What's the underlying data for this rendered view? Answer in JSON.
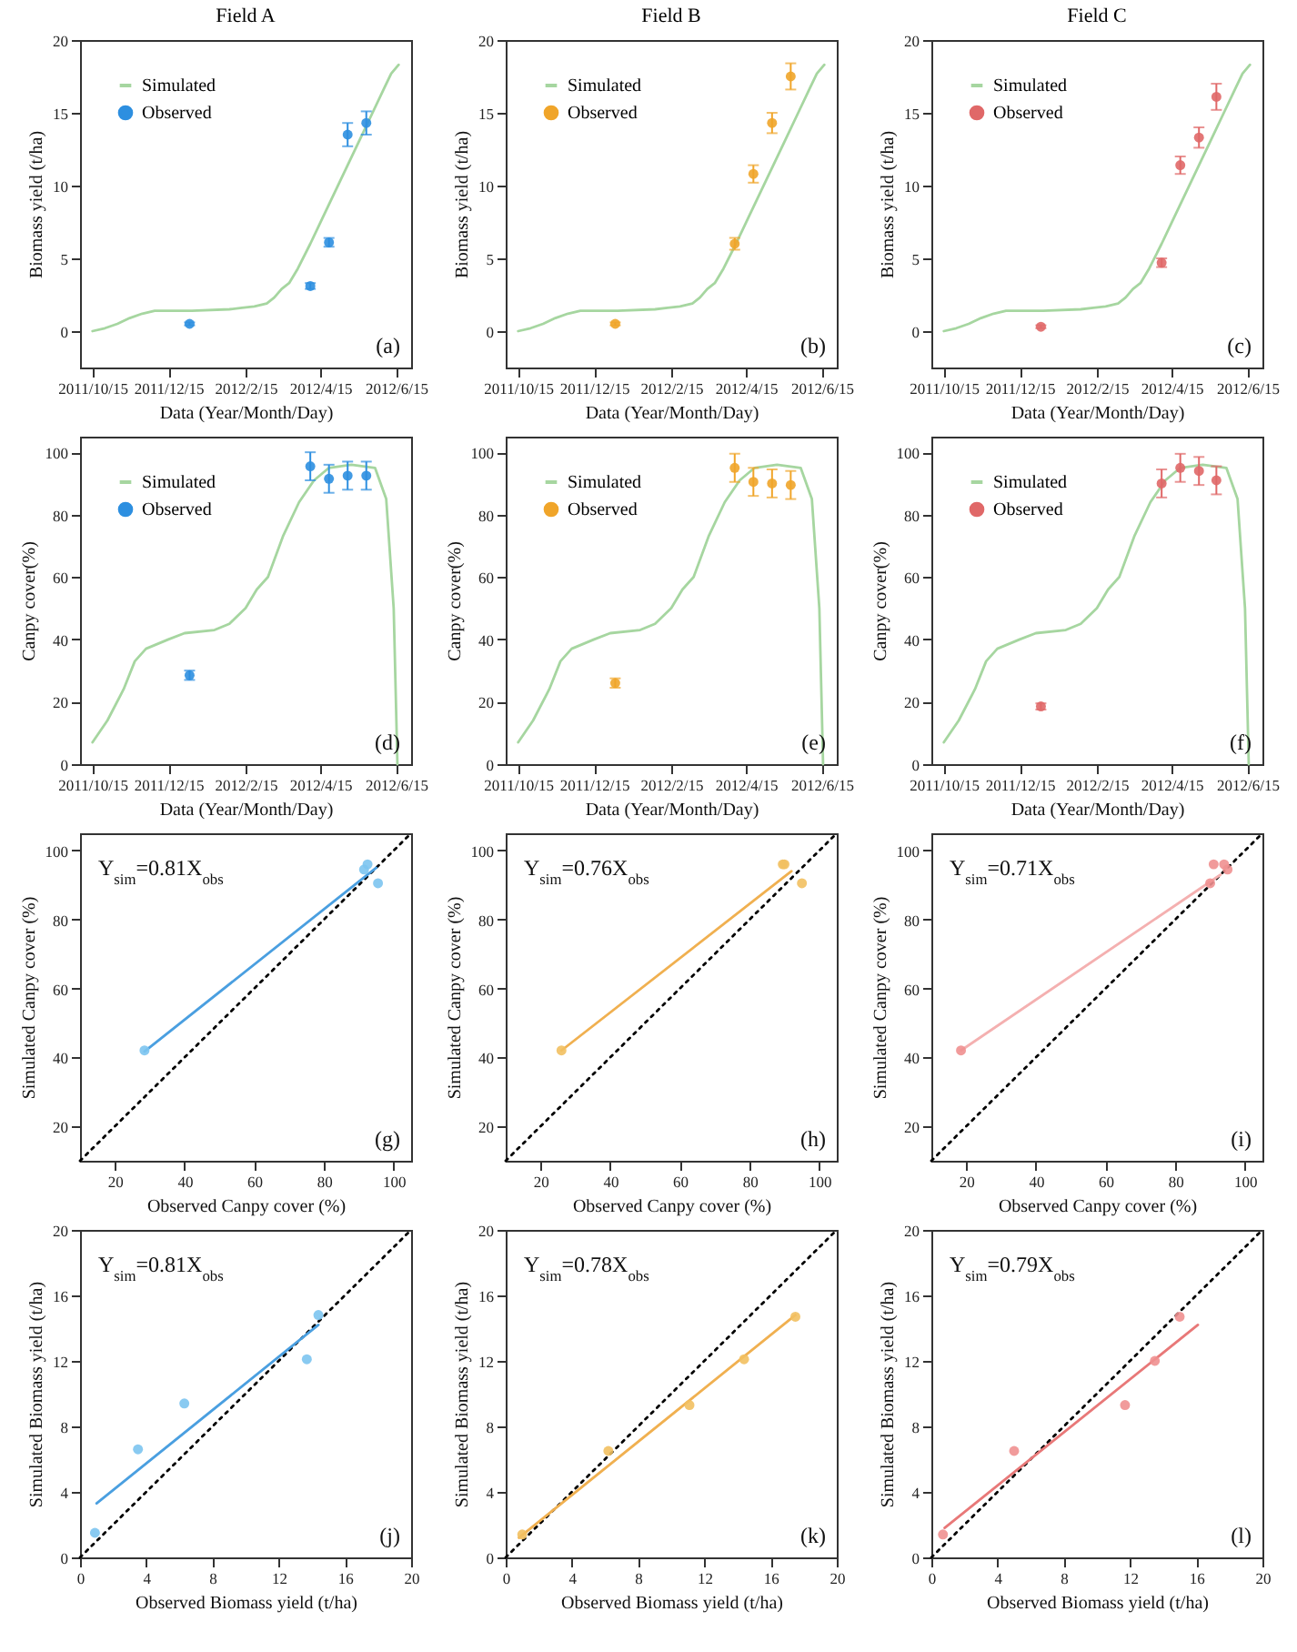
{
  "chart_data": [
    {
      "type": "line",
      "title": "Field A",
      "xlabel": "Data (Year/Month/Day)",
      "ylabel": "Biomass yield (t/ha)",
      "legend": "top left",
      "annotations": [
        "(a)"
      ],
      "xlim": [
        "2011-10-05",
        "2012-06-27"
      ],
      "xticks": [
        {
          "value": "2011-10-15",
          "label": "2011/10/15"
        },
        {
          "value": "2011-12-15",
          "label": "2011/12/15"
        },
        {
          "value": "2012-02-15",
          "label": "2012/2/15"
        },
        {
          "value": "2012-04-15",
          "label": "2012/4/15"
        },
        {
          "value": "2012-06-15",
          "label": "2012/6/15"
        }
      ],
      "ylim": [
        -2.5,
        20
      ],
      "yticks": [
        0,
        5,
        10,
        15,
        20
      ],
      "series": [
        {
          "name": "Simulated",
          "color": "#a6d6a0",
          "x": [
            "2011-10-15",
            "2011-10-25",
            "2011-11-04",
            "2011-11-14",
            "2011-11-24",
            "2011-12-04",
            "2012-01-03",
            "2012-02-02",
            "2012-02-12",
            "2012-02-22",
            "2012-03-03",
            "2012-03-09",
            "2012-03-15",
            "2012-03-21",
            "2012-03-28",
            "2012-04-07",
            "2012-04-17",
            "2012-04-27",
            "2012-05-07",
            "2012-05-17",
            "2012-05-27",
            "2012-06-06",
            "2012-06-11",
            "2012-06-17"
          ],
          "values": [
            0,
            0.2,
            0.5,
            0.9,
            1.2,
            1.4,
            1.4,
            1.5,
            1.6,
            1.7,
            1.9,
            2.3,
            2.9,
            3.3,
            4.3,
            6.0,
            7.8,
            9.6,
            11.4,
            13.2,
            15.0,
            16.8,
            17.7,
            18.3
          ]
        },
        {
          "name": "Observed",
          "type": "scatter",
          "marker": "circle",
          "color": "#2d8fe0",
          "x": [
            "2012-01-01",
            "2012-04-07",
            "2012-04-22",
            "2012-05-07",
            "2012-05-22"
          ],
          "values": [
            0.5,
            3.1,
            6.1,
            13.5,
            14.3
          ],
          "errors": [
            0.1,
            0.2,
            0.3,
            0.8,
            0.8
          ]
        }
      ]
    },
    {
      "type": "line",
      "title": "Field B",
      "xlabel": "Data (Year/Month/Day)",
      "ylabel": "Biomass yield (t/ha)",
      "legend": "top left",
      "annotations": [
        "(b)"
      ],
      "xlim": [
        "2011-10-05",
        "2012-06-27"
      ],
      "xticks": [
        {
          "value": "2011-10-15",
          "label": "2011/10/15"
        },
        {
          "value": "2011-12-15",
          "label": "2011/12/15"
        },
        {
          "value": "2012-02-15",
          "label": "2012/2/15"
        },
        {
          "value": "2012-04-15",
          "label": "2012/4/15"
        },
        {
          "value": "2012-06-15",
          "label": "2012/6/15"
        }
      ],
      "ylim": [
        -2.5,
        20
      ],
      "yticks": [
        0,
        5,
        10,
        15,
        20
      ],
      "series": [
        {
          "name": "Simulated",
          "color": "#a6d6a0",
          "x": [
            "2011-10-15",
            "2011-10-25",
            "2011-11-04",
            "2011-11-14",
            "2011-11-24",
            "2011-12-04",
            "2012-01-03",
            "2012-02-02",
            "2012-02-12",
            "2012-02-22",
            "2012-03-03",
            "2012-03-09",
            "2012-03-15",
            "2012-03-21",
            "2012-03-28",
            "2012-04-07",
            "2012-04-17",
            "2012-04-27",
            "2012-05-07",
            "2012-05-17",
            "2012-05-27",
            "2012-06-06",
            "2012-06-11",
            "2012-06-17"
          ],
          "values": [
            0,
            0.2,
            0.5,
            0.9,
            1.2,
            1.4,
            1.4,
            1.5,
            1.6,
            1.7,
            1.9,
            2.3,
            2.9,
            3.3,
            4.3,
            6.0,
            7.8,
            9.6,
            11.4,
            13.2,
            15.0,
            16.8,
            17.7,
            18.3
          ]
        },
        {
          "name": "Observed",
          "type": "scatter",
          "marker": "circle",
          "color": "#f0a52a",
          "x": [
            "2012-01-01",
            "2012-04-06",
            "2012-04-21",
            "2012-05-06",
            "2012-05-21"
          ],
          "values": [
            0.5,
            6.0,
            10.8,
            14.3,
            17.5
          ],
          "errors": [
            0.1,
            0.4,
            0.6,
            0.7,
            0.9
          ]
        }
      ]
    },
    {
      "type": "line",
      "title": "Field C",
      "xlabel": "Data (Year/Month/Day)",
      "ylabel": "Biomass yield (t/ha)",
      "legend": "top left",
      "annotations": [
        "(c)"
      ],
      "xlim": [
        "2011-10-05",
        "2012-06-27"
      ],
      "xticks": [
        {
          "value": "2011-10-15",
          "label": "2011/10/15"
        },
        {
          "value": "2011-12-15",
          "label": "2011/12/15"
        },
        {
          "value": "2012-02-15",
          "label": "2012/2/15"
        },
        {
          "value": "2012-04-15",
          "label": "2012/4/15"
        },
        {
          "value": "2012-06-15",
          "label": "2012/6/15"
        }
      ],
      "ylim": [
        -2.5,
        20
      ],
      "yticks": [
        0,
        5,
        10,
        15,
        20
      ],
      "series": [
        {
          "name": "Simulated",
          "color": "#a6d6a0",
          "x": [
            "2011-10-15",
            "2011-10-25",
            "2011-11-04",
            "2011-11-14",
            "2011-11-24",
            "2011-12-04",
            "2012-01-03",
            "2012-02-02",
            "2012-02-12",
            "2012-02-22",
            "2012-03-03",
            "2012-03-09",
            "2012-03-15",
            "2012-03-21",
            "2012-03-28",
            "2012-04-07",
            "2012-04-17",
            "2012-04-27",
            "2012-05-07",
            "2012-05-17",
            "2012-05-27",
            "2012-06-06",
            "2012-06-11",
            "2012-06-17"
          ],
          "values": [
            0,
            0.2,
            0.5,
            0.9,
            1.2,
            1.4,
            1.4,
            1.5,
            1.6,
            1.7,
            1.9,
            2.3,
            2.9,
            3.3,
            4.3,
            6.0,
            7.8,
            9.6,
            11.4,
            13.2,
            15.0,
            16.8,
            17.7,
            18.3
          ]
        },
        {
          "name": "Observed",
          "type": "scatter",
          "marker": "circle",
          "color": "#e06868",
          "x": [
            "2012-01-01",
            "2012-04-07",
            "2012-04-22",
            "2012-05-07",
            "2012-05-21"
          ],
          "values": [
            0.3,
            4.7,
            11.4,
            13.3,
            16.1
          ],
          "errors": [
            0.1,
            0.3,
            0.6,
            0.7,
            0.9
          ]
        }
      ]
    },
    {
      "type": "line",
      "xlabel": "Data (Year/Month/Day)",
      "ylabel": "Canpy cover(%)",
      "legend": "top left",
      "annotations": [
        "(d)"
      ],
      "xlim": [
        "2011-10-05",
        "2012-06-27"
      ],
      "xticks": [
        {
          "value": "2011-10-15",
          "label": "2011/10/15"
        },
        {
          "value": "2011-12-15",
          "label": "2011/12/15"
        },
        {
          "value": "2012-02-15",
          "label": "2012/2/15"
        },
        {
          "value": "2012-04-15",
          "label": "2012/4/15"
        },
        {
          "value": "2012-06-15",
          "label": "2012/6/15"
        }
      ],
      "ylim": [
        0,
        105
      ],
      "yticks": [
        0,
        20,
        40,
        60,
        80,
        100
      ],
      "series": [
        {
          "name": "Simulated",
          "color": "#a6d6a0",
          "x": [
            "2011-10-15",
            "2011-10-27",
            "2011-11-09",
            "2011-11-18",
            "2011-11-27",
            "2011-12-15",
            "2011-12-28",
            "2012-01-21",
            "2012-02-02",
            "2012-02-15",
            "2012-02-24",
            "2012-03-04",
            "2012-03-16",
            "2012-03-29",
            "2012-04-10",
            "2012-04-22",
            "2012-05-10",
            "2012-05-29",
            "2012-06-07",
            "2012-06-13",
            "2012-06-16"
          ],
          "values": [
            7,
            14,
            24,
            33,
            37,
            40,
            42,
            43,
            45,
            50,
            56,
            60,
            73,
            84,
            91,
            95,
            96,
            95,
            85,
            50,
            0
          ]
        },
        {
          "name": "Observed",
          "type": "scatter",
          "marker": "circle",
          "color": "#2d8fe0",
          "x": [
            "2012-01-01",
            "2012-04-07",
            "2012-04-22",
            "2012-05-07",
            "2012-05-22"
          ],
          "values": [
            28.5,
            95.5,
            91.5,
            92.5,
            92.5
          ],
          "errors": [
            1.5,
            4.5,
            4.5,
            4.5,
            4.5
          ]
        }
      ]
    },
    {
      "type": "line",
      "xlabel": "Data (Year/Month/Day)",
      "ylabel": "Canpy cover(%)",
      "legend": "top left",
      "annotations": [
        "(e)"
      ],
      "xlim": [
        "2011-10-05",
        "2012-06-27"
      ],
      "xticks": [
        {
          "value": "2011-10-15",
          "label": "2011/10/15"
        },
        {
          "value": "2011-12-15",
          "label": "2011/12/15"
        },
        {
          "value": "2012-02-15",
          "label": "2012/2/15"
        },
        {
          "value": "2012-04-15",
          "label": "2012/4/15"
        },
        {
          "value": "2012-06-15",
          "label": "2012/6/15"
        }
      ],
      "ylim": [
        0,
        105
      ],
      "yticks": [
        0,
        20,
        40,
        60,
        80,
        100
      ],
      "series": [
        {
          "name": "Simulated",
          "color": "#a6d6a0",
          "x": [
            "2011-10-15",
            "2011-10-27",
            "2011-11-09",
            "2011-11-18",
            "2011-11-27",
            "2011-12-15",
            "2011-12-28",
            "2012-01-21",
            "2012-02-02",
            "2012-02-15",
            "2012-02-24",
            "2012-03-04",
            "2012-03-16",
            "2012-03-29",
            "2012-04-10",
            "2012-04-22",
            "2012-05-10",
            "2012-05-29",
            "2012-06-07",
            "2012-06-13",
            "2012-06-16"
          ],
          "values": [
            7,
            14,
            24,
            33,
            37,
            40,
            42,
            43,
            45,
            50,
            56,
            60,
            73,
            84,
            91,
            95,
            96,
            95,
            85,
            50,
            0
          ]
        },
        {
          "name": "Observed",
          "type": "scatter",
          "marker": "circle",
          "color": "#f0a52a",
          "x": [
            "2012-01-01",
            "2012-04-06",
            "2012-04-21",
            "2012-05-06",
            "2012-05-21"
          ],
          "values": [
            26,
            95,
            90.5,
            90,
            89.5
          ],
          "errors": [
            1.5,
            4.5,
            4.5,
            4.5,
            4.5
          ]
        }
      ]
    },
    {
      "type": "line",
      "xlabel": "Data (Year/Month/Day)",
      "ylabel": "Canpy cover(%)",
      "legend": "top left",
      "annotations": [
        "(f)"
      ],
      "xlim": [
        "2011-10-05",
        "2012-06-27"
      ],
      "xticks": [
        {
          "value": "2011-10-15",
          "label": "2011/10/15"
        },
        {
          "value": "2011-12-15",
          "label": "2011/12/15"
        },
        {
          "value": "2012-02-15",
          "label": "2012/2/15"
        },
        {
          "value": "2012-04-15",
          "label": "2012/4/15"
        },
        {
          "value": "2012-06-15",
          "label": "2012/6/15"
        }
      ],
      "ylim": [
        0,
        105
      ],
      "yticks": [
        0,
        20,
        40,
        60,
        80,
        100
      ],
      "series": [
        {
          "name": "Simulated",
          "color": "#a6d6a0",
          "x": [
            "2011-10-15",
            "2011-10-27",
            "2011-11-09",
            "2011-11-18",
            "2011-11-27",
            "2011-12-15",
            "2011-12-28",
            "2012-01-21",
            "2012-02-02",
            "2012-02-15",
            "2012-02-24",
            "2012-03-04",
            "2012-03-16",
            "2012-03-29",
            "2012-04-10",
            "2012-04-22",
            "2012-05-10",
            "2012-05-29",
            "2012-06-07",
            "2012-06-13",
            "2012-06-16"
          ],
          "values": [
            7,
            14,
            24,
            33,
            37,
            40,
            42,
            43,
            45,
            50,
            56,
            60,
            73,
            84,
            91,
            95,
            96,
            95,
            85,
            50,
            0
          ]
        },
        {
          "name": "Observed",
          "type": "scatter",
          "marker": "circle",
          "color": "#e06868",
          "x": [
            "2012-01-01",
            "2012-04-07",
            "2012-04-22",
            "2012-05-07",
            "2012-05-21"
          ],
          "values": [
            18.5,
            90,
            95,
            94,
            91
          ],
          "errors": [
            1,
            4.5,
            4.5,
            4.5,
            4.5
          ]
        }
      ]
    },
    {
      "type": "scatter",
      "xlabel": "Observed Canpy cover (%)",
      "ylabel": "Simulated Canpy cover (%)",
      "annotations": [
        "Y$_{sim}$=0.81X$_{obs}$",
        "(g)"
      ],
      "xlim": [
        10,
        105
      ],
      "xticks": [
        20,
        40,
        60,
        80,
        100
      ],
      "ylim": [
        10,
        105
      ],
      "yticks": [
        20,
        40,
        60,
        80,
        100
      ],
      "series": [
        {
          "type": "line",
          "color": "#000000",
          "line_style": "dotted",
          "x": [
            10,
            105
          ],
          "values": [
            10,
            105
          ]
        },
        {
          "type": "line",
          "color": "#4a9fe0",
          "x": [
            28.5,
            95
          ],
          "values": [
            41.7,
            95
          ]
        },
        {
          "marker": "circle",
          "color": "#7cc4f0",
          "x": [
            28.5,
            91.5,
            92.5,
            95.5
          ],
          "values": [
            42,
            94.5,
            96,
            90.5
          ]
        }
      ]
    },
    {
      "type": "scatter",
      "xlabel": "Observed Canpy cover (%)",
      "ylabel": "Simulated Canpy cover (%)",
      "annotations": [
        "Y$_{sim}$=0.76X$_{obs}$",
        "(h)"
      ],
      "xlim": [
        10,
        105
      ],
      "xticks": [
        20,
        40,
        60,
        80,
        100
      ],
      "ylim": [
        10,
        105
      ],
      "yticks": [
        20,
        40,
        60,
        80,
        100
      ],
      "series": [
        {
          "type": "line",
          "color": "#000000",
          "line_style": "dotted",
          "x": [
            10,
            105
          ],
          "values": [
            10,
            105
          ]
        },
        {
          "type": "line",
          "color": "#f0b050",
          "x": [
            26,
            92
          ],
          "values": [
            42,
            94
          ]
        },
        {
          "marker": "circle",
          "color": "#f2c060",
          "x": [
            26,
            89.5,
            90,
            95
          ],
          "values": [
            42,
            96,
            96,
            90.5
          ]
        }
      ]
    },
    {
      "type": "scatter",
      "xlabel": "Observed Canpy cover (%)",
      "ylabel": "Simulated Canpy cover (%)",
      "annotations": [
        "Y$_{sim}$=0.71X$_{obs}$",
        "(i)"
      ],
      "xlim": [
        10,
        105
      ],
      "xticks": [
        20,
        40,
        60,
        80,
        100
      ],
      "ylim": [
        10,
        105
      ],
      "yticks": [
        20,
        40,
        60,
        80,
        100
      ],
      "series": [
        {
          "type": "line",
          "color": "#000000",
          "line_style": "dotted",
          "x": [
            10,
            105
          ],
          "values": [
            10,
            105
          ]
        },
        {
          "type": "line",
          "color": "#f4b0b0",
          "x": [
            18.5,
            93
          ],
          "values": [
            42,
            93
          ]
        },
        {
          "marker": "circle",
          "color": "#f09090",
          "x": [
            18.5,
            90,
            91,
            94,
            95
          ],
          "values": [
            42,
            90.5,
            96,
            96,
            94.5
          ]
        }
      ]
    },
    {
      "type": "scatter",
      "xlabel": "Observed Biomass yield (t/ha)",
      "ylabel": "Simulated Biomass yield (t/ha)",
      "annotations": [
        "Y$_{sim}$=0.81X$_{obs}$",
        "(j)"
      ],
      "xlim": [
        0,
        20
      ],
      "xticks": [
        0,
        4,
        8,
        12,
        16,
        20
      ],
      "ylim": [
        0,
        20
      ],
      "yticks": [
        0,
        4,
        8,
        12,
        16,
        20
      ],
      "series": [
        {
          "type": "line",
          "color": "#000000",
          "line_style": "dotted",
          "x": [
            0,
            20
          ],
          "values": [
            0,
            20
          ]
        },
        {
          "type": "line",
          "color": "#4a9fe0",
          "x": [
            1,
            14.4
          ],
          "values": [
            3.3,
            14.2
          ]
        },
        {
          "marker": "circle",
          "color": "#7cc4f0",
          "x": [
            0.9,
            3.5,
            6.3,
            13.7,
            14.4
          ],
          "values": [
            1.5,
            6.6,
            9.4,
            12.1,
            14.8
          ]
        }
      ]
    },
    {
      "type": "scatter",
      "xlabel": "Observed Biomass yield (t/ha)",
      "ylabel": "Simulated Biomass yield (t/ha)",
      "annotations": [
        "Y$_{sim}$=0.78X$_{obs}$",
        "(k)"
      ],
      "xlim": [
        0,
        20
      ],
      "xticks": [
        0,
        4,
        8,
        12,
        16,
        20
      ],
      "ylim": [
        0,
        20
      ],
      "yticks": [
        0,
        4,
        8,
        12,
        16,
        20
      ],
      "series": [
        {
          "type": "line",
          "color": "#000000",
          "line_style": "dotted",
          "x": [
            0,
            20
          ],
          "values": [
            0,
            20
          ]
        },
        {
          "type": "line",
          "color": "#f0b050",
          "x": [
            0.8,
            17.5
          ],
          "values": [
            1.2,
            14.8
          ]
        },
        {
          "marker": "circle",
          "color": "#f2c060",
          "x": [
            1,
            6.2,
            11.1,
            14.4,
            17.5
          ],
          "values": [
            1.4,
            6.5,
            9.3,
            12.1,
            14.7
          ]
        }
      ]
    },
    {
      "type": "scatter",
      "xlabel": "Observed Biomass yield (t/ha)",
      "ylabel": "Simulated Biomass yield (t/ha)",
      "annotations": [
        "Y$_{sim}$=0.79X$_{obs}$",
        "(l)"
      ],
      "xlim": [
        0,
        20
      ],
      "xticks": [
        0,
        4,
        8,
        12,
        16,
        20
      ],
      "ylim": [
        0,
        20
      ],
      "yticks": [
        0,
        4,
        8,
        12,
        16,
        20
      ],
      "series": [
        {
          "type": "line",
          "color": "#000000",
          "line_style": "dotted",
          "x": [
            0,
            20
          ],
          "values": [
            0,
            20
          ]
        },
        {
          "type": "line",
          "color": "#e87878",
          "x": [
            0.8,
            16.1
          ],
          "values": [
            1.8,
            14.2
          ]
        },
        {
          "marker": "circle",
          "color": "#f09090",
          "x": [
            0.7,
            5.0,
            11.7,
            13.5,
            15.0
          ],
          "values": [
            1.4,
            6.5,
            9.3,
            12.0,
            14.7
          ]
        }
      ]
    }
  ]
}
